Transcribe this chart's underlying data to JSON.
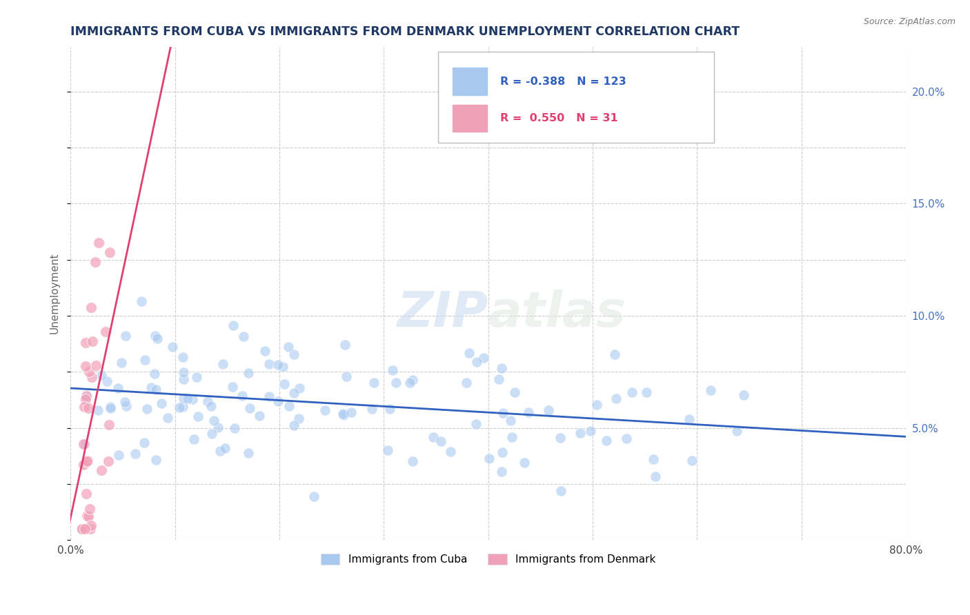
{
  "title": "IMMIGRANTS FROM CUBA VS IMMIGRANTS FROM DENMARK UNEMPLOYMENT CORRELATION CHART",
  "source": "Source: ZipAtlas.com",
  "ylabel": "Unemployment",
  "xlim": [
    0.0,
    0.8
  ],
  "ylim": [
    0.0,
    0.22
  ],
  "xticks": [
    0.0,
    0.1,
    0.2,
    0.3,
    0.4,
    0.5,
    0.6,
    0.7,
    0.8
  ],
  "xticklabels": [
    "0.0%",
    "",
    "",
    "",
    "",
    "",
    "",
    "",
    "80.0%"
  ],
  "yticks_right": [
    0.05,
    0.1,
    0.15,
    0.2
  ],
  "ytick_labels_right": [
    "5.0%",
    "10.0%",
    "15.0%",
    "20.0%"
  ],
  "cuba_color": "#A8C8F0",
  "denmark_color": "#F0A0B8",
  "cuba_line_color": "#3060C0",
  "denmark_line_color": "#E04070",
  "legend_cuba_label": "Immigrants from Cuba",
  "legend_denmark_label": "Immigrants from Denmark",
  "cuba_R": -0.388,
  "cuba_N": 123,
  "denmark_R": 0.55,
  "denmark_N": 31,
  "watermark_zip": "ZIP",
  "watermark_atlas": "atlas",
  "background_color": "#FFFFFF",
  "grid_color": "#C8C8C8",
  "title_color": "#1F3864",
  "right_tick_color": "#4472C4",
  "title_fontsize": 12.5,
  "cuba_scatter_seed": 99,
  "denmark_scatter_seed": 77,
  "scatter_size": 120,
  "scatter_alpha": 0.6,
  "scatter_edgewidth": 0.8,
  "scatter_edgecolor": "#FFFFFF"
}
